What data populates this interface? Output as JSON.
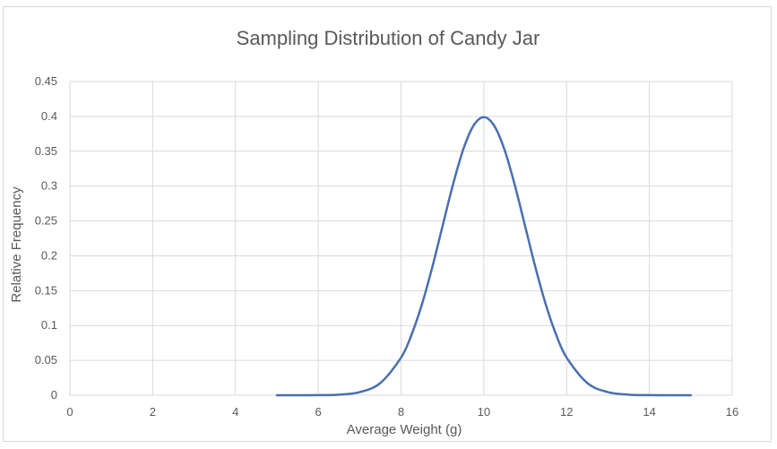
{
  "chart_data": {
    "type": "line",
    "title": "Sampling Distribution of Candy Jar",
    "xlabel": "Average Weight (g)",
    "ylabel": "Relative Frequency",
    "xlim": [
      0,
      16
    ],
    "ylim": [
      0,
      0.45
    ],
    "x_ticks": [
      "0",
      "2",
      "4",
      "6",
      "8",
      "10",
      "12",
      "14",
      "16"
    ],
    "y_ticks": [
      "0",
      "0.05",
      "0.1",
      "0.15",
      "0.2",
      "0.25",
      "0.3",
      "0.35",
      "0.4",
      "0.45"
    ],
    "grid": true,
    "legend": "none",
    "series": [
      {
        "color": "#4a6fb0",
        "x": [
          5.0,
          5.5,
          6.0,
          6.5,
          7.0,
          7.5,
          8.0,
          8.25,
          8.5,
          8.75,
          9.0,
          9.25,
          9.5,
          9.75,
          10.0,
          10.25,
          10.5,
          10.75,
          11.0,
          11.25,
          11.5,
          11.75,
          12.0,
          12.5,
          13.0,
          13.5,
          14.0,
          14.5,
          15.0
        ],
        "values": [
          1.5e-06,
          1.6e-05,
          0.000134,
          0.000873,
          0.00443,
          0.0175,
          0.054,
          0.0863,
          0.1295,
          0.1826,
          0.242,
          0.3011,
          0.3521,
          0.3867,
          0.3989,
          0.3867,
          0.3521,
          0.3011,
          0.242,
          0.1826,
          0.1295,
          0.0863,
          0.054,
          0.0175,
          0.00443,
          0.000873,
          0.000134,
          1.6e-05,
          1.5e-06
        ]
      }
    ]
  }
}
